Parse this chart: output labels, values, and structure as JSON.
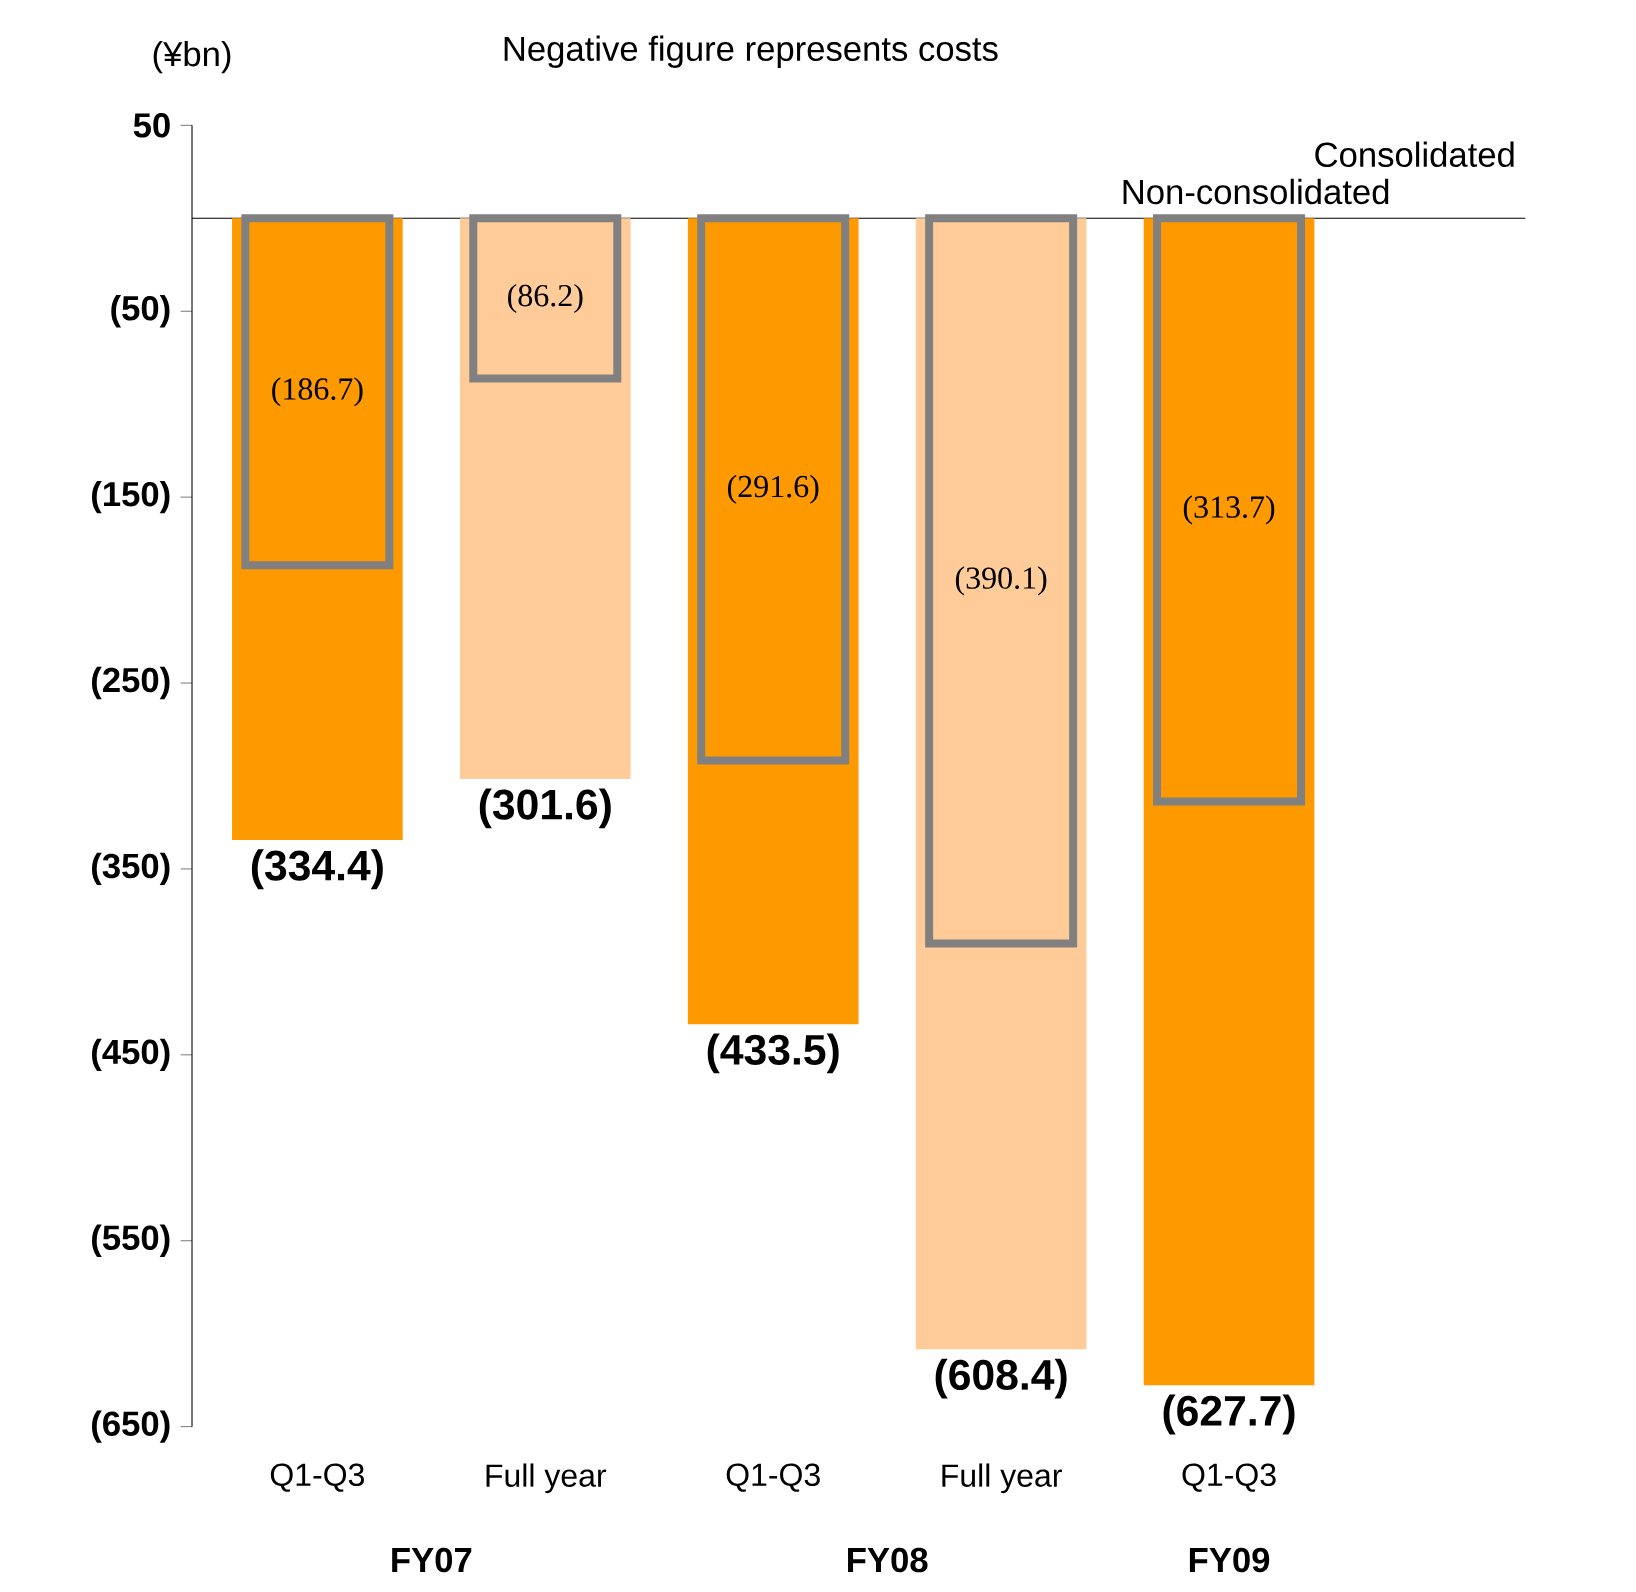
{
  "chart_data": {
    "type": "bar",
    "subtitle": "Negative figure represents costs",
    "ylabel": "(¥bn)",
    "categories": [
      "Q1-Q3",
      "Full year",
      "Q1-Q3",
      "Full year",
      "Q1-Q3"
    ],
    "annotations": [
      "FY07",
      "FY08",
      "FY09"
    ],
    "series": [
      {
        "name": "Consolidated",
        "colors": [
          "#ff9900",
          "#ffcc99",
          "#ff9900",
          "#ffcc99",
          "#ff9900"
        ],
        "values": [
          -334.4,
          -301.6,
          -433.5,
          -608.4,
          -627.7
        ],
        "value_labels": [
          "(334.4)",
          "(301.6)",
          "(433.5)",
          "(608.4)",
          "(627.7)"
        ]
      },
      {
        "name": "Non-consolidated",
        "colors": [
          "#ff9900",
          "#ffcc99",
          "#ff9900",
          "#ffcc99",
          "#ff9900"
        ],
        "values": [
          -186.7,
          -86.2,
          -291.6,
          -390.1,
          -313.7
        ],
        "value_labels": [
          "(186.7)",
          "(86.2)",
          "(291.6)",
          "(390.1)",
          "(313.7)"
        ]
      }
    ],
    "ylim": [
      -650,
      50
    ],
    "yticks": [
      50,
      {
        "value": -50,
        "label": "(50)"
      },
      {
        "value": -150,
        "label": "(150)"
      },
      {
        "value": -250,
        "label": "(250)"
      },
      {
        "value": -350,
        "label": "(350)"
      },
      {
        "value": -450,
        "label": "(450)"
      },
      {
        "value": -550,
        "label": "(550)"
      },
      {
        "value": -650,
        "label": "(650)"
      }
    ],
    "ref_lines": [
      {
        "axis": "y",
        "value": 0,
        "color": "#000000"
      }
    ],
    "grid": false
  }
}
